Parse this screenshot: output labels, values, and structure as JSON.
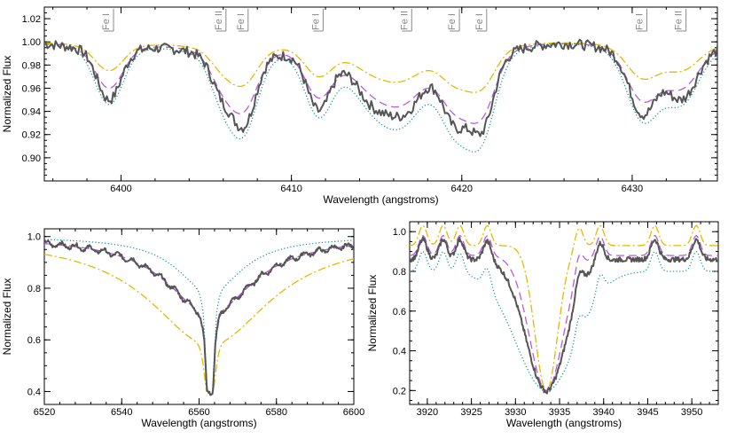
{
  "chart_data": [
    {
      "type": "line",
      "xlabel": "Wavelength (angstroms)",
      "ylabel": "Normalized Flux",
      "xlim": [
        6395.5,
        6435
      ],
      "ylim": [
        0.88,
        1.03
      ],
      "xticks": [
        6400,
        6410,
        6420,
        6430
      ],
      "yticks": [
        0.9,
        0.92,
        0.94,
        0.96,
        0.98,
        1.0,
        1.02
      ],
      "ytick_labels": [
        "0.90",
        "0.92",
        "0.94",
        "0.96",
        "0.98",
        "1.00",
        "1.02"
      ],
      "line_labels": [
        {
          "text": "Fe I",
          "x": 6399.3
        },
        {
          "text": "Fe II",
          "x": 6405.9
        },
        {
          "text": "Fe I",
          "x": 6407.2
        },
        {
          "text": "Fe I",
          "x": 6411.6
        },
        {
          "text": "Fe II",
          "x": 6416.8
        },
        {
          "text": "Fe I",
          "x": 6419.6
        },
        {
          "text": "Fe I",
          "x": 6421.2
        },
        {
          "text": "Fe I",
          "x": 6430.6
        },
        {
          "text": "Fe II",
          "x": 6432.9
        }
      ],
      "lines": [
        {
          "x": 6399.3,
          "d": 0.034,
          "w": 0.8
        },
        {
          "x": 6405.9,
          "d": 0.022,
          "w": 0.7
        },
        {
          "x": 6407.2,
          "d": 0.045,
          "w": 0.8
        },
        {
          "x": 6411.6,
          "d": 0.038,
          "w": 0.8
        },
        {
          "x": 6414.9,
          "d": 0.03,
          "w": 1.3
        },
        {
          "x": 6416.8,
          "d": 0.028,
          "w": 1.1
        },
        {
          "x": 6419.6,
          "d": 0.042,
          "w": 0.9
        },
        {
          "x": 6421.2,
          "d": 0.046,
          "w": 0.8
        },
        {
          "x": 6430.6,
          "d": 0.04,
          "w": 0.9
        },
        {
          "x": 6432.9,
          "d": 0.03,
          "w": 1.0
        }
      ],
      "series": [
        {
          "style": "observed",
          "color": "#555555",
          "width": 2.0,
          "dash": "",
          "noise": 0.0045
        },
        {
          "style": "model-dotted",
          "color": "#1a9a9a",
          "width": 1.3,
          "dash": "1.2,2.4",
          "scale": 1.35
        },
        {
          "style": "model-dashed",
          "color": "#b85ae0",
          "width": 1.3,
          "dash": "9,5",
          "scale": 1.0
        },
        {
          "style": "model-dashdot",
          "color": "#e6b800",
          "width": 1.3,
          "dash": "9,3,2,3",
          "scale": 0.62
        }
      ]
    },
    {
      "type": "line",
      "xlabel": "Wavelength (angstroms)",
      "ylabel": "Normalized Flux",
      "xlim": [
        6520,
        6600
      ],
      "ylim": [
        0.35,
        1.03
      ],
      "xticks": [
        6520,
        6540,
        6560,
        6580,
        6600
      ],
      "yticks": [
        0.4,
        0.6,
        0.8,
        1.0
      ],
      "ytick_labels": [
        "0.4",
        "0.6",
        "0.8",
        "1.0"
      ],
      "center": 6562.8,
      "core_depth": 0.59,
      "series": [
        {
          "style": "observed",
          "color": "#555555",
          "width": 2.0,
          "dash": "",
          "wings": 0.3,
          "noise": 0.006
        },
        {
          "style": "model-dotted",
          "color": "#1a9a9a",
          "width": 1.3,
          "dash": "1.2,2.4",
          "wings": 0.22
        },
        {
          "style": "model-dashed",
          "color": "#b85ae0",
          "width": 1.3,
          "dash": "9,5",
          "wings": 0.3
        },
        {
          "style": "model-dashdot",
          "color": "#e6b800",
          "width": 1.3,
          "dash": "9,3,2,3",
          "wings": 0.42
        }
      ]
    },
    {
      "type": "line",
      "xlabel": "Wavelength (angstroms)",
      "ylabel": "Normalized Flux",
      "xlim": [
        3918,
        3953
      ],
      "ylim": [
        0.13,
        1.05
      ],
      "xticks": [
        3920,
        3925,
        3930,
        3935,
        3940,
        3945,
        3950
      ],
      "yticks": [
        0.2,
        0.4,
        0.6,
        0.8,
        1.0
      ],
      "ytick_labels": [
        "0.2",
        "0.4",
        "0.6",
        "0.8",
        "1.0"
      ],
      "center": 3933.5,
      "series": [
        {
          "style": "observed",
          "color": "#555555",
          "width": 2.0,
          "dash": "",
          "width_k": 2.3,
          "cont": 0.86,
          "noise": 0.012
        },
        {
          "style": "model-dotted",
          "color": "#1a9a9a",
          "width": 1.3,
          "dash": "1.2,2.4",
          "width_k": 3.4,
          "cont": 0.8
        },
        {
          "style": "model-dashed",
          "color": "#b85ae0",
          "width": 1.3,
          "dash": "9,5",
          "width_k": 1.9,
          "cont": 0.88
        },
        {
          "style": "model-dashdot",
          "color": "#e6b800",
          "width": 1.3,
          "dash": "9,3,2,3",
          "width_k": 1.3,
          "cont": 0.93
        }
      ],
      "peaks": [
        3919.5,
        3921.8,
        3923.7,
        3926.8,
        3937.2,
        3939.6,
        3945.8,
        3950.5
      ]
    }
  ]
}
